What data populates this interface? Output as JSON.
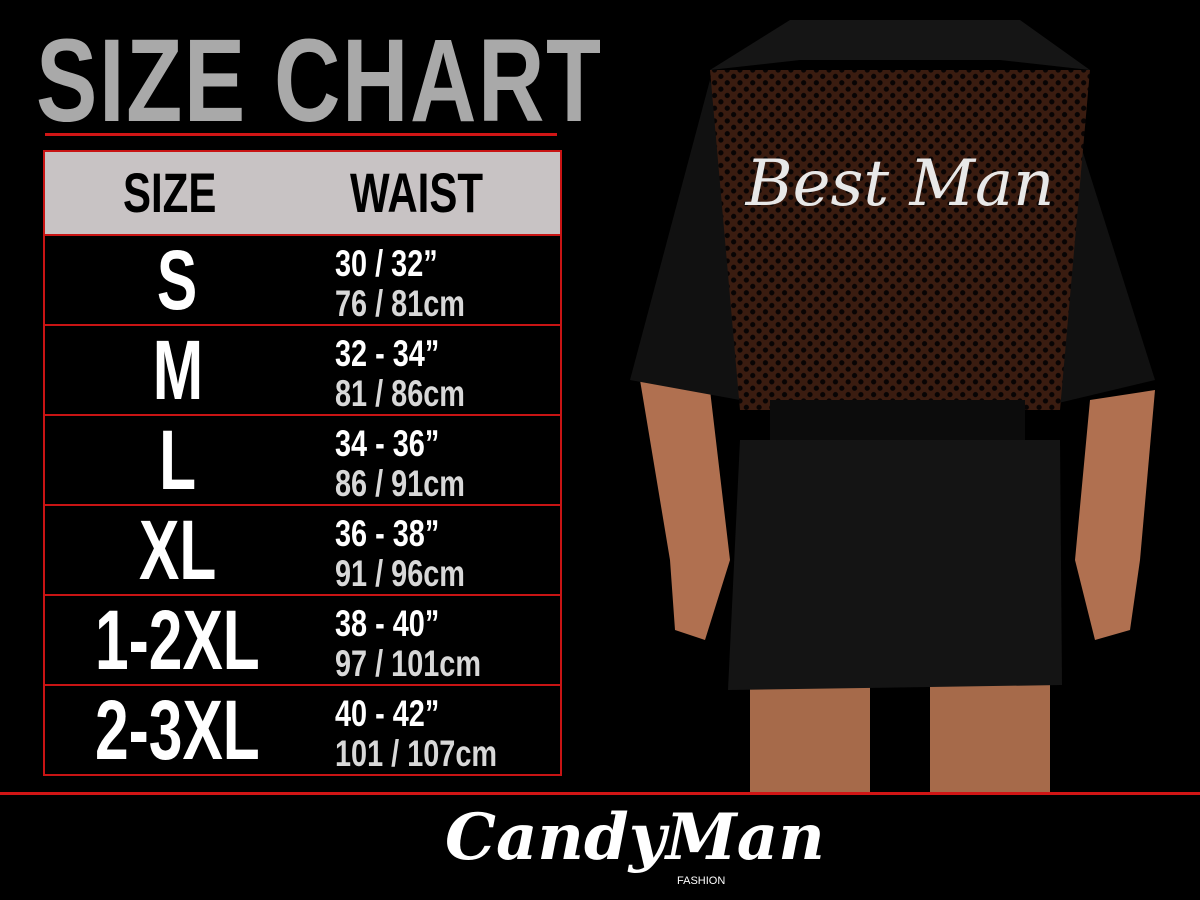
{
  "title": "SIZE CHART",
  "table": {
    "headers": [
      "SIZE",
      "WAIST"
    ],
    "rows": [
      {
        "size": "S",
        "inches": "30 / 32”",
        "cm": "76 / 81cm"
      },
      {
        "size": "M",
        "inches": "32 - 34”",
        "cm": "81 / 86cm"
      },
      {
        "size": "L",
        "inches": "34 - 36”",
        "cm": "86 / 91cm"
      },
      {
        "size": "XL",
        "inches": "36 - 38”",
        "cm": "91 / 96cm"
      },
      {
        "size": "1-2XL",
        "inches": "38 - 40”",
        "cm": "97 / 101cm"
      },
      {
        "size": "2-3XL",
        "inches": "40 - 42”",
        "cm": "101 / 107cm"
      }
    ]
  },
  "product": {
    "back_print": "Best Man"
  },
  "brand": {
    "name": "CandyMan",
    "tagline": "FASHION"
  },
  "colors": {
    "accent": "#d01515",
    "header_bg": "#c8c3c4",
    "title": "#a9a9a9",
    "background": "#000000"
  }
}
